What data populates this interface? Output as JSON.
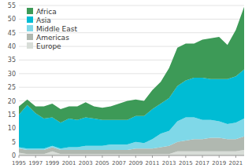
{
  "chart_data": {
    "type": "area",
    "stacked": true,
    "grid": true,
    "legend": "upper left",
    "x": [
      1995,
      1996,
      1997,
      1998,
      1999,
      2000,
      2001,
      2002,
      2003,
      2004,
      2005,
      2006,
      2007,
      2008,
      2009,
      2010,
      2011,
      2012,
      2013,
      2014,
      2015,
      2016,
      2017,
      2018,
      2019,
      2020,
      2021,
      2022
    ],
    "series": [
      {
        "name": "Europe",
        "color": "#d8ddd8",
        "values": [
          1.0,
          0.5,
          0.5,
          0.5,
          1.5,
          0.5,
          0.5,
          0.5,
          0.5,
          0.5,
          0.5,
          0.5,
          0.5,
          0.5,
          0.5,
          0.5,
          0.5,
          0.5,
          0.5,
          1.5,
          1.5,
          1.5,
          1.5,
          1.5,
          1.5,
          1.5,
          1.5,
          2.0
        ]
      },
      {
        "name": "Americas",
        "color": "#b0b8b0",
        "values": [
          1.5,
          1.5,
          1.5,
          1.5,
          1.5,
          1.5,
          1.5,
          1.5,
          1.5,
          1.5,
          1.5,
          1.5,
          1.5,
          1.5,
          2.0,
          2.0,
          2.0,
          2.5,
          3.0,
          3.5,
          4.0,
          4.5,
          4.5,
          5.0,
          5.0,
          4.5,
          4.5,
          5.0
        ]
      },
      {
        "name": "Middle East",
        "color": "#7fd8e8",
        "values": [
          0.5,
          0.5,
          0.5,
          0.5,
          0.5,
          0.5,
          1.0,
          1.0,
          1.5,
          1.5,
          1.5,
          2.0,
          2.0,
          2.0,
          2.5,
          2.0,
          3.5,
          5.0,
          5.5,
          7.5,
          8.5,
          8.0,
          7.0,
          6.5,
          6.0,
          5.5,
          6.0,
          6.5
        ]
      },
      {
        "name": "Asia",
        "color": "#00bcd4",
        "values": [
          12.0,
          16.0,
          13.0,
          11.0,
          10.5,
          9.5,
          10.5,
          10.0,
          10.5,
          10.0,
          9.5,
          9.0,
          9.0,
          9.0,
          9.5,
          10.0,
          11.0,
          11.0,
          12.0,
          13.0,
          13.5,
          14.5,
          15.5,
          15.0,
          15.5,
          16.5,
          17.0,
          18.0
        ]
      },
      {
        "name": "Africa",
        "color": "#3d9a57",
        "values": [
          3.0,
          2.0,
          2.5,
          4.5,
          5.0,
          5.0,
          4.5,
          5.0,
          5.5,
          4.5,
          4.5,
          5.0,
          6.0,
          7.0,
          6.0,
          5.5,
          7.0,
          8.0,
          11.0,
          14.0,
          13.5,
          12.5,
          14.0,
          15.0,
          15.5,
          12.5,
          17.0,
          23.0
        ]
      }
    ],
    "xlim": [
      1995,
      2022
    ],
    "xticks": [
      1995,
      1997,
      1999,
      2001,
      2003,
      2005,
      2007,
      2009,
      2011,
      2013,
      2015,
      2017,
      2019,
      2021
    ],
    "ylim": [
      0,
      55
    ],
    "yticks": [
      0,
      5,
      10,
      15,
      20,
      25,
      30,
      35,
      40,
      45,
      50,
      55
    ]
  }
}
